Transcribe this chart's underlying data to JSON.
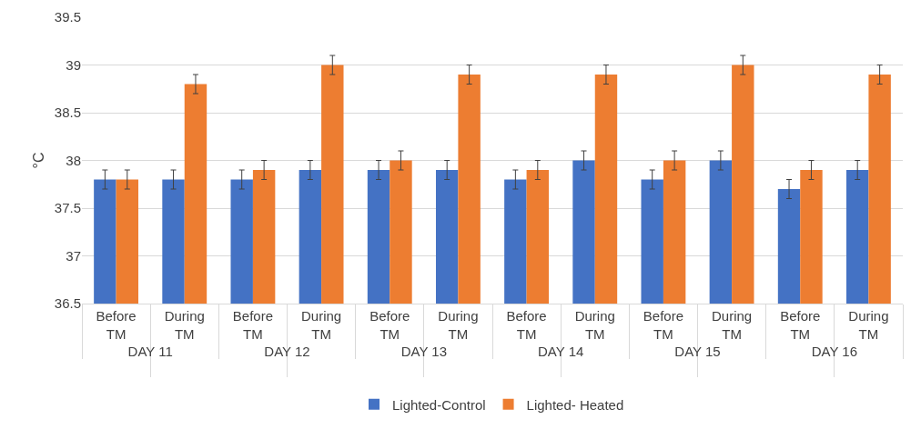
{
  "chart_data": {
    "type": "bar",
    "ylabel": "°C",
    "categories": [
      "Before TM",
      "During TM",
      "Before TM",
      "During TM",
      "Before TM",
      "During TM",
      "Before TM",
      "During TM",
      "Before TM",
      "During TM",
      "Before TM",
      "During TM"
    ],
    "annotations": [
      "DAY 11",
      "DAY 12",
      "DAY 13",
      "DAY 14",
      "DAY 15",
      "DAY 16"
    ],
    "series": [
      {
        "name": "Lighted-Control",
        "color": "#4472c4",
        "values": [
          37.8,
          37.8,
          37.8,
          37.9,
          37.9,
          37.9,
          37.8,
          38.0,
          37.8,
          38.0,
          37.7,
          37.9
        ],
        "errors": [
          0.1,
          0.1,
          0.1,
          0.1,
          0.1,
          0.1,
          0.1,
          0.1,
          0.1,
          0.1,
          0.1,
          0.1
        ]
      },
      {
        "name": "Lighted- Heated",
        "color": "#ed7d31",
        "values": [
          37.8,
          38.8,
          37.9,
          39.0,
          38.0,
          38.9,
          37.9,
          38.9,
          38.0,
          39.0,
          37.9,
          38.9
        ],
        "errors": [
          0.1,
          0.1,
          0.1,
          0.1,
          0.1,
          0.1,
          0.1,
          0.1,
          0.1,
          0.1,
          0.1,
          0.1
        ]
      }
    ],
    "ylim": [
      36.5,
      39.5
    ],
    "yticks": [
      36.5,
      37,
      37.5,
      38,
      38.5,
      39,
      39.5
    ],
    "grid": "y",
    "legend": "bottom"
  }
}
